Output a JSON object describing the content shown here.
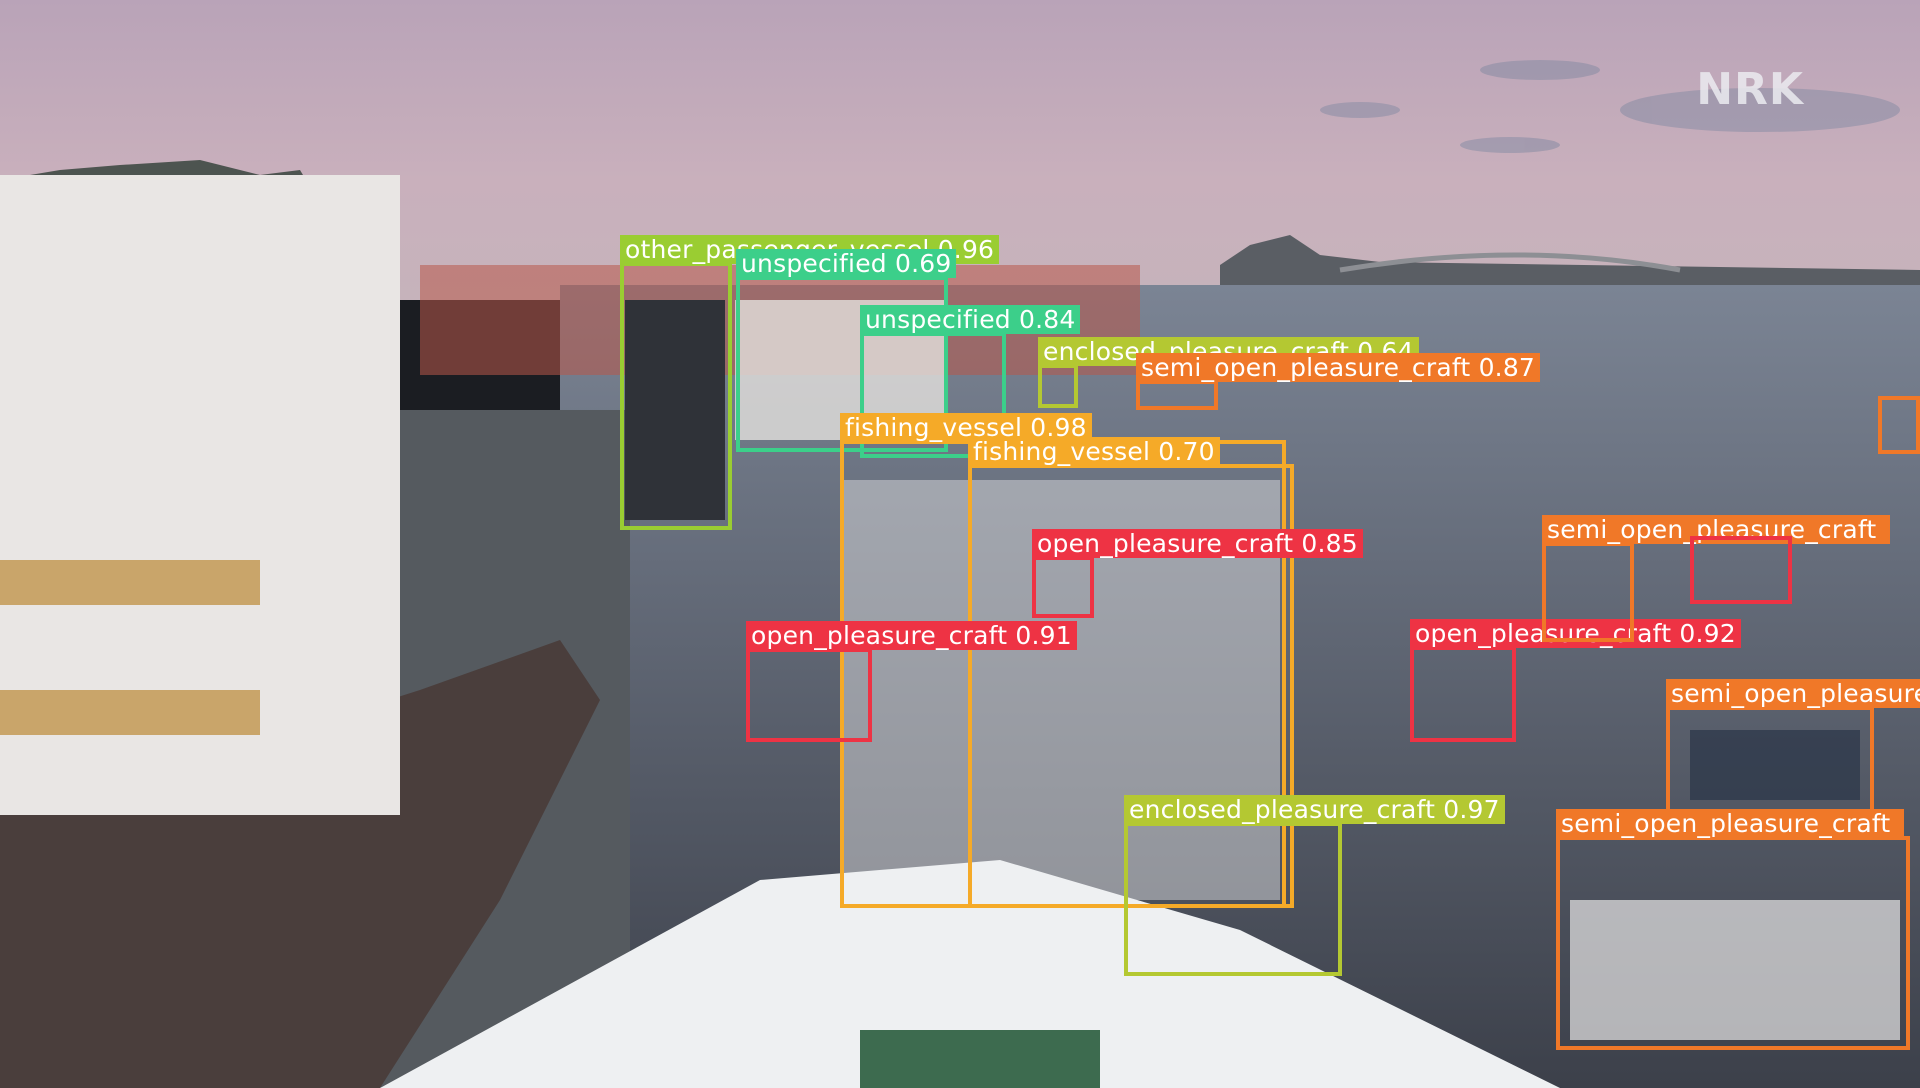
{
  "watermark": "NRK",
  "detections": [
    {
      "label": "other_passenger_vessel",
      "score": "0.96",
      "color": "#9acd32"
    },
    {
      "label": "unspecified",
      "score": "0.69",
      "color": "#3ccf8a"
    },
    {
      "label": "unspecified",
      "score": "0.84",
      "color": "#3ccf8a"
    },
    {
      "label": "enclosed_pleasure_craft",
      "score": "0.64",
      "color": "#b4c832"
    },
    {
      "label": "semi_open_pleasure_craft",
      "score": "0.87",
      "color": "#f07828"
    },
    {
      "label": "fishing_vessel",
      "score": "0.98",
      "color": "#f5aa28"
    },
    {
      "label": "fishing_vessel",
      "score": "0.70",
      "color": "#f5aa28"
    },
    {
      "label": "open_pleasure_craft",
      "score": "0.85",
      "color": "#ee3344"
    },
    {
      "label": "open_pleasure_craft",
      "score": "0.91",
      "color": "#ee3344"
    },
    {
      "label": "open_pleasure_craft",
      "score": "0.92",
      "color": "#ee3344"
    },
    {
      "label": "semi_open_pleasure_craft",
      "score": "",
      "color": "#f07828"
    },
    {
      "label": "semi_open_pleasure_craft",
      "score": "",
      "color": "#f07828"
    },
    {
      "label": "semi_open_pleasure_craft",
      "score": "",
      "color": "#f07828"
    },
    {
      "label": "enclosed_pleasure_craft",
      "score": "0.97",
      "color": "#b4c832"
    },
    {
      "label": "",
      "score": "",
      "color": "#ee3344"
    },
    {
      "label": "",
      "score": "",
      "color": "#ee3344"
    },
    {
      "label": "",
      "score": "",
      "color": "#f07828"
    }
  ]
}
